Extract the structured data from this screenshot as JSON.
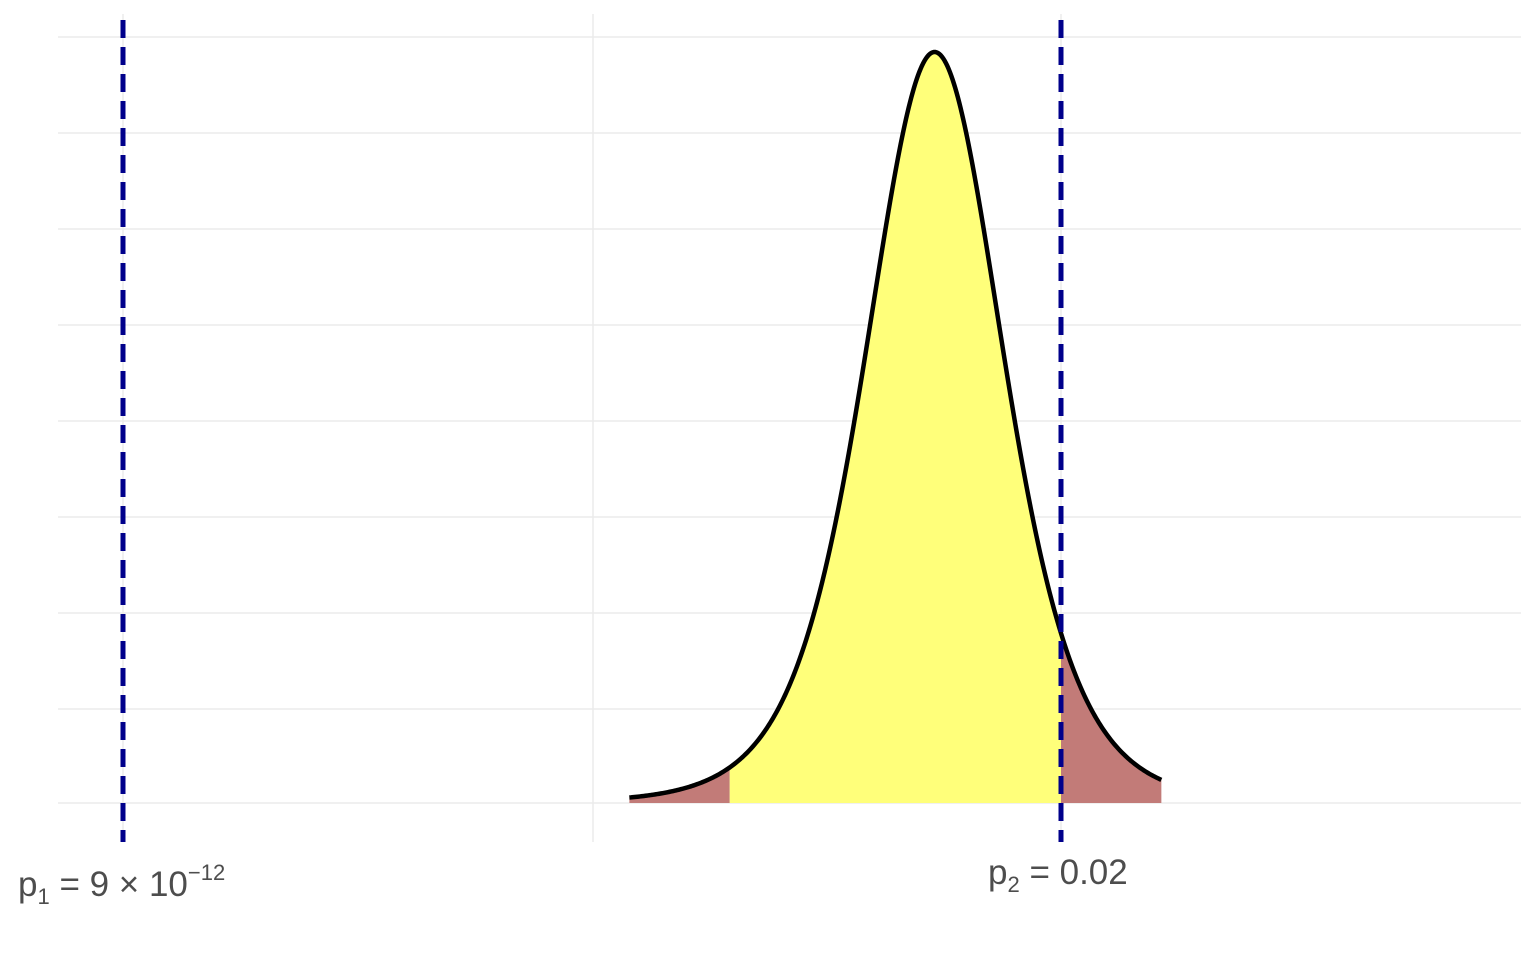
{
  "chart_data": {
    "type": "area",
    "title": "",
    "xlabel": "",
    "ylabel": "",
    "x_scale": "-log10(p)",
    "grid": true,
    "legend": "none",
    "reference_lines": [
      {
        "name": "p1",
        "p": 9e-12,
        "label": {
          "base": "p",
          "sub": "1",
          "mid": " = 9 × 10",
          "sup": "−12"
        }
      },
      {
        "name": "p2",
        "p": 0.02,
        "label": {
          "base": "p",
          "sub": "2",
          "mid": " = 0.02",
          "sup": ""
        }
      }
    ],
    "distribution": {
      "shape": "bell",
      "peak_p": 0.0011,
      "interval_p": [
        0.02,
        1e-05
      ],
      "tail_p": [
        0.2,
        1e-06
      ]
    },
    "colors": {
      "reference_line": "#00008b",
      "center_fill": "#ffff7a",
      "tail_fill": "#c27b78",
      "curve": "#000000",
      "grid": "#ebebeb",
      "tick_text": "#4d4d4d"
    }
  }
}
